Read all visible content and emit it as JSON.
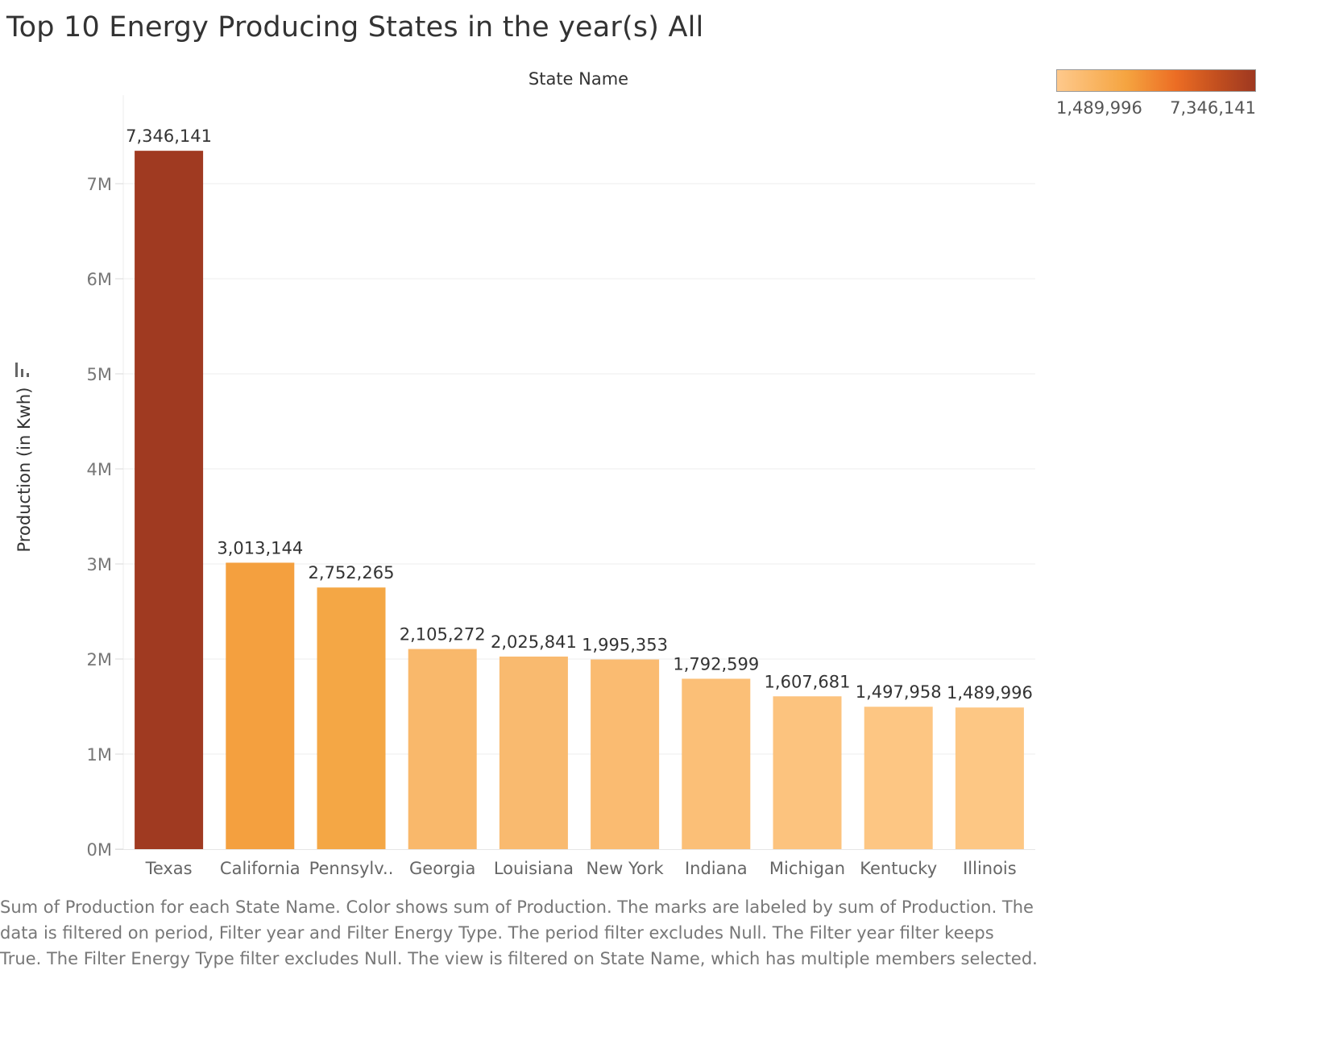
{
  "title": "Top 10 Energy Producing States in the year(s) All",
  "caption": "Sum of Production for each State Name.  Color shows sum of Production.  The marks are labeled by sum of Production.  The data is filtered on period, Filter year and Filter Energy Type. The period filter excludes Null. The Filter year filter keeps True. The Filter Energy Type filter excludes Null. The view is filtered on State Name, which has multiple members selected.",
  "legend": {
    "min_label": "1,489,996",
    "max_label": "7,346,141",
    "color_low": "#fec98c",
    "color_high": "#9e3820"
  },
  "icons": {
    "sort": "sort-descending-icon"
  },
  "chart_data": {
    "type": "bar",
    "column_header": "State Name",
    "ylabel": "Production (in Kwh)",
    "xlabel": "",
    "ylim": [
      0,
      7500000
    ],
    "yticks": [
      {
        "value": 0,
        "label": "0M"
      },
      {
        "value": 1000000,
        "label": "1M"
      },
      {
        "value": 2000000,
        "label": "2M"
      },
      {
        "value": 3000000,
        "label": "3M"
      },
      {
        "value": 4000000,
        "label": "4M"
      },
      {
        "value": 5000000,
        "label": "5M"
      },
      {
        "value": 6000000,
        "label": "6M"
      },
      {
        "value": 7000000,
        "label": "7M"
      }
    ],
    "grid": true,
    "categories": [
      "Texas",
      "California",
      "Pennsylv..",
      "Georgia",
      "Louisiana",
      "New York",
      "Indiana",
      "Michigan",
      "Kentucky",
      "Illinois"
    ],
    "values": [
      7346141,
      3013144,
      2752265,
      2105272,
      2025841,
      1995353,
      1792599,
      1607681,
      1497958,
      1489996
    ],
    "value_labels": [
      "7,346,141",
      "3,013,144",
      "2,752,265",
      "2,105,272",
      "2,025,841",
      "1,995,353",
      "1,792,599",
      "1,607,681",
      "1,497,958",
      "1,489,996"
    ],
    "colors": [
      "#a03a21",
      "#f4a03f",
      "#f4a745",
      "#f9b86b",
      "#f9ba6f",
      "#fabb71",
      "#fbbf77",
      "#fcc37e",
      "#fdc683",
      "#fdc784"
    ]
  }
}
